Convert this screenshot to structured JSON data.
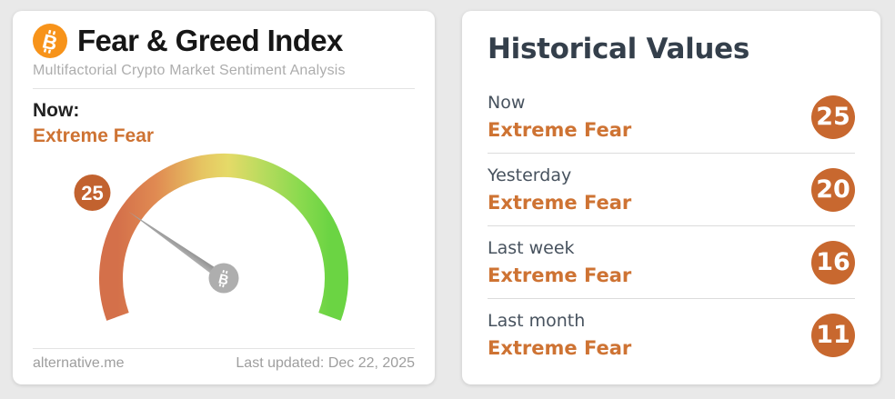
{
  "left_card": {
    "title": "Fear & Greed Index",
    "subtitle": "Multifactorial Crypto Market Sentiment Analysis",
    "now_label": "Now:",
    "now_value": "Extreme Fear",
    "footer_left": "alternative.me",
    "footer_right": "Last updated: Dec 22, 2025"
  },
  "historical": {
    "title": "Historical Values",
    "rows": [
      {
        "label": "Now",
        "sentiment": "Extreme Fear",
        "value": "25"
      },
      {
        "label": "Yesterday",
        "sentiment": "Extreme Fear",
        "value": "20"
      },
      {
        "label": "Last week",
        "sentiment": "Extreme Fear",
        "value": "16"
      },
      {
        "label": "Last month",
        "sentiment": "Extreme Fear",
        "value": "11"
      }
    ]
  },
  "icons": {
    "bitcoin_logo": "bitcoin-icon",
    "gauge_hub": "bitcoin-icon"
  },
  "colors": {
    "accent_orange_text": "#ce7333",
    "badge_orange": "#c8682f",
    "bitcoin_orange": "#f7931a",
    "needle_gray": "#9c9c9c",
    "hub_gray": "#aeaeae",
    "title_dark": "#161616",
    "hv_title_dark": "#343f4b",
    "muted_gray": "#9e9e9e",
    "gradient_left": "#d4704a",
    "gradient_mid": "#e5da68",
    "gradient_right": "#67d343"
  },
  "chart_data": {
    "type": "gauge",
    "title": "Fear & Greed Index",
    "value": 25,
    "min": 0,
    "max": 100,
    "sentiment": "Extreme Fear",
    "start_angle_deg": 200,
    "sweep_deg": 220,
    "gradient_stops": [
      "#d4704a",
      "#e08a52",
      "#e6c562",
      "#e5da68",
      "#b9db5e",
      "#8cda4f",
      "#6bd443"
    ],
    "historical_series": {
      "categories": [
        "Now",
        "Yesterday",
        "Last week",
        "Last month"
      ],
      "values": [
        25,
        20,
        16,
        11
      ],
      "sentiments": [
        "Extreme Fear",
        "Extreme Fear",
        "Extreme Fear",
        "Extreme Fear"
      ]
    }
  }
}
